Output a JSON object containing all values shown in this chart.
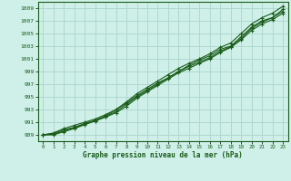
{
  "xlabel": "Graphe pression niveau de la mer (hPa)",
  "ylabel": "",
  "background_color": "#cef0e8",
  "grid_color": "#b0d8d0",
  "line_color": "#1a5c1a",
  "marker_color": "#1a5c1a",
  "text_color": "#1a5c1a",
  "ylim": [
    988,
    1010
  ],
  "xlim": [
    -0.5,
    23.5
  ],
  "yticks": [
    989,
    991,
    993,
    995,
    997,
    999,
    1001,
    1003,
    1005,
    1007,
    1009
  ],
  "xticks": [
    0,
    1,
    2,
    3,
    4,
    5,
    6,
    7,
    8,
    9,
    10,
    11,
    12,
    13,
    14,
    15,
    16,
    17,
    18,
    19,
    20,
    21,
    22,
    23
  ],
  "series": [
    [
      989.0,
      989.3,
      990.0,
      990.5,
      991.0,
      991.5,
      992.2,
      993.0,
      994.2,
      995.5,
      996.5,
      997.5,
      998.5,
      999.5,
      1000.3,
      1001.0,
      1001.8,
      1002.8,
      1003.5,
      1005.0,
      1006.5,
      1007.5,
      1008.2,
      1009.3
    ],
    [
      989.0,
      989.2,
      989.8,
      990.2,
      990.8,
      991.3,
      992.0,
      993.0,
      994.0,
      995.2,
      996.2,
      997.2,
      998.0,
      999.0,
      1000.0,
      1000.8,
      1001.5,
      1002.5,
      1003.0,
      1004.5,
      1006.0,
      1007.0,
      1007.5,
      1008.5
    ],
    [
      989.0,
      989.0,
      989.5,
      990.0,
      990.6,
      991.2,
      991.8,
      992.5,
      993.5,
      994.8,
      995.8,
      996.8,
      997.8,
      998.8,
      999.5,
      1000.3,
      1001.0,
      1002.0,
      1002.8,
      1004.0,
      1005.5,
      1006.5,
      1007.2,
      1008.2
    ],
    [
      989.0,
      989.1,
      989.6,
      990.1,
      990.7,
      991.2,
      991.9,
      992.7,
      993.8,
      995.0,
      996.0,
      997.0,
      998.0,
      999.0,
      999.8,
      1000.5,
      1001.2,
      1002.2,
      1002.9,
      1004.2,
      1005.8,
      1006.8,
      1007.5,
      1008.8
    ]
  ]
}
